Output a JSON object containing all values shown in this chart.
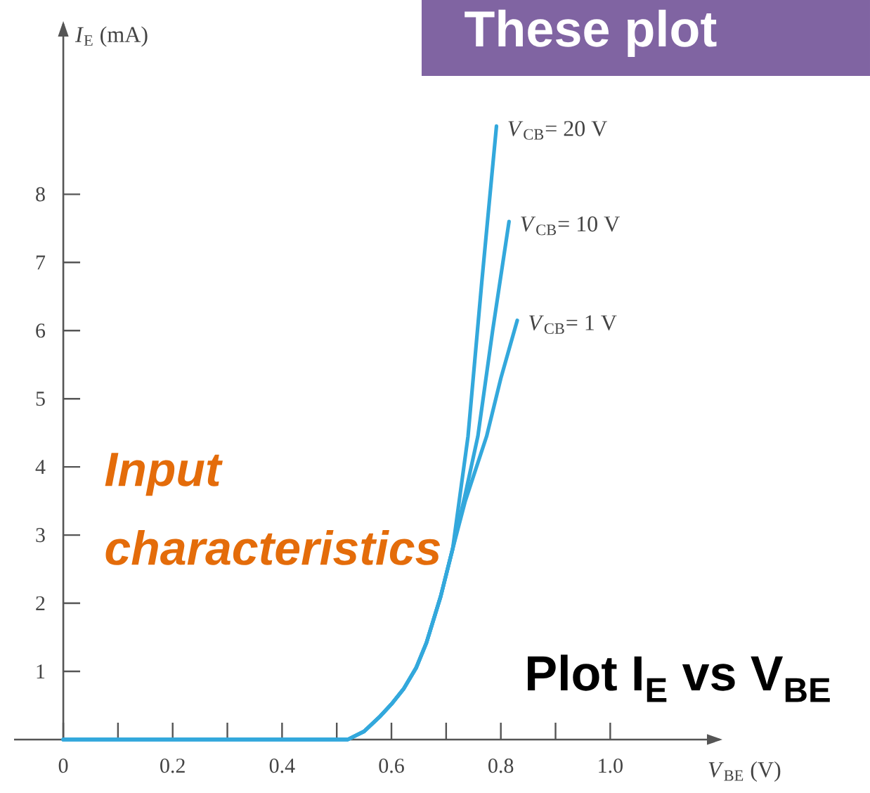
{
  "chart_data": {
    "type": "line",
    "title": "These plot",
    "xlabel": "*V*$_{BE}$ (V)",
    "ylabel": "*I*$_{E}$ (mA)",
    "annotations": [
      "Input characteristics",
      "Plot I$_{E}$ vs V$_{BE}$"
    ],
    "xlim": [
      -0.09,
      1.2
    ],
    "ylim": [
      0,
      10.5
    ],
    "xticks": [
      0,
      {
        "value": 0.1,
        "label": null
      },
      0.2,
      {
        "value": 0.3,
        "label": null
      },
      0.4,
      {
        "value": 0.5,
        "label": null
      },
      0.6,
      {
        "value": 0.7,
        "label": null
      },
      0.8,
      {
        "value": 0.9,
        "label": null
      },
      {
        "value": 1,
        "label": "1.0"
      }
    ],
    "yticks": [
      1,
      2,
      3,
      4,
      5,
      6,
      7,
      8
    ],
    "series": [
      {
        "name": "*V*$_{CB}$= 20 V",
        "color": "#33a8dc",
        "x": [
          0,
          0.52,
          0.55,
          0.578,
          0.6,
          0.622,
          0.645,
          0.664,
          0.69,
          0.712,
          0.74,
          0.765,
          0.792
        ],
        "values": [
          0,
          0,
          0.12,
          0.33,
          0.52,
          0.74,
          1.05,
          1.42,
          2.1,
          2.8,
          4.45,
          6.7,
          9.0
        ]
      },
      {
        "name": "*V*$_{CB}$= 10 V",
        "color": "#33a8dc",
        "x": [
          0,
          0.52,
          0.55,
          0.578,
          0.6,
          0.622,
          0.645,
          0.664,
          0.69,
          0.712,
          0.735,
          0.758,
          0.785,
          0.815
        ],
        "values": [
          0,
          0,
          0.12,
          0.33,
          0.52,
          0.74,
          1.05,
          1.42,
          2.1,
          2.8,
          3.6,
          4.45,
          6.0,
          7.6
        ]
      },
      {
        "name": "*V*$_{CB}$= 1 V",
        "color": "#33a8dc",
        "x": [
          0,
          0.52,
          0.55,
          0.578,
          0.6,
          0.622,
          0.645,
          0.664,
          0.69,
          0.712,
          0.735,
          0.774,
          0.8,
          0.83
        ],
        "values": [
          0,
          0,
          0.12,
          0.33,
          0.52,
          0.74,
          1.05,
          1.42,
          2.1,
          2.8,
          3.5,
          4.45,
          5.3,
          6.15
        ]
      }
    ]
  }
}
